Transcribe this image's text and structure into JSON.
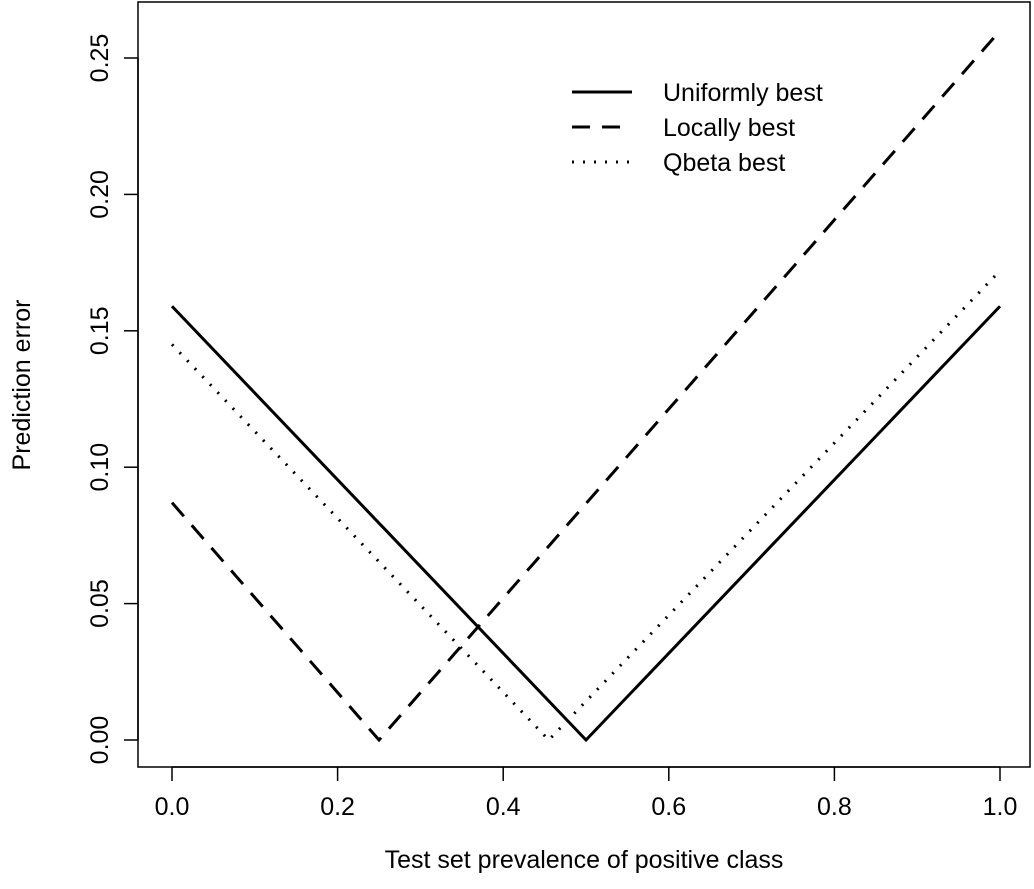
{
  "chart_data": {
    "type": "line",
    "xlabel": "Test set prevalence of positive class",
    "ylabel": "Prediction error",
    "xlim": [
      -0.035,
      1.035
    ],
    "ylim": [
      -0.01,
      0.27
    ],
    "xticks": [
      0.0,
      0.2,
      0.4,
      0.6,
      0.8,
      1.0
    ],
    "xtick_labels": [
      "0.0",
      "0.2",
      "0.4",
      "0.6",
      "0.8",
      "1.0"
    ],
    "yticks": [
      0.0,
      0.05,
      0.1,
      0.15,
      0.2,
      0.25
    ],
    "ytick_labels": [
      "0.00",
      "0.05",
      "0.10",
      "0.15",
      "0.20",
      "0.25"
    ],
    "grid": false,
    "legend_position": "top-right",
    "series": [
      {
        "name": "Uniformly best",
        "line_style": "solid",
        "x": [
          0.0,
          0.5,
          1.0
        ],
        "y": [
          0.159,
          0.0,
          0.159
        ]
      },
      {
        "name": "Locally best",
        "line_style": "dashed",
        "x": [
          0.0,
          0.25,
          1.0
        ],
        "y": [
          0.087,
          0.0,
          0.26
        ]
      },
      {
        "name": "Qbeta best",
        "line_style": "dotted",
        "x": [
          0.0,
          0.455,
          1.0
        ],
        "y": [
          0.145,
          0.0,
          0.172
        ]
      }
    ],
    "color": "#000000"
  }
}
